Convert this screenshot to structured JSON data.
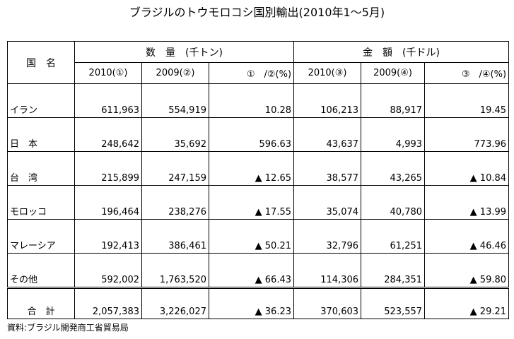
{
  "title": "ブラジルのトウモロコシ国別輸出(2010年1～5月)",
  "table": {
    "country_header": "国　名",
    "quantity_group": "数　量　(千トン)",
    "value_group": "金　額　(千ドル)",
    "subheaders": [
      "2010(①)",
      "2009(②)",
      "①　/②(%)",
      "2010(③)",
      "2009(④)",
      "③　/④(%)"
    ],
    "rows": [
      {
        "country": "イラン",
        "q2010": "611,963",
        "q2009": "554,919",
        "q_pct": "10.28",
        "v2010": "106,213",
        "v2009": "88,917",
        "v_pct": "19.45"
      },
      {
        "country": "日　本",
        "q2010": "248,642",
        "q2009": "35,692",
        "q_pct": "596.63",
        "v2010": "43,637",
        "v2009": "4,993",
        "v_pct": "773.96"
      },
      {
        "country": "台　湾",
        "q2010": "215,899",
        "q2009": "247,159",
        "q_pct": "▲ 12.65",
        "v2010": "38,577",
        "v2009": "43,265",
        "v_pct": "▲ 10.84"
      },
      {
        "country": "モロッコ",
        "q2010": "196,464",
        "q2009": "238,276",
        "q_pct": "▲ 17.55",
        "v2010": "35,074",
        "v2009": "40,780",
        "v_pct": "▲ 13.99"
      },
      {
        "country": "マレーシア",
        "q2010": "192,413",
        "q2009": "386,461",
        "q_pct": "▲ 50.21",
        "v2010": "32,796",
        "v2009": "61,251",
        "v_pct": "▲ 46.46"
      },
      {
        "country": "その他",
        "q2010": "592,002",
        "q2009": "1,763,520",
        "q_pct": "▲ 66.43",
        "v2010": "114,306",
        "v2009": "284,351",
        "v_pct": "▲ 59.80"
      }
    ],
    "total": {
      "country": "合　計",
      "q2010": "2,057,383",
      "q2009": "3,226,027",
      "q_pct": "▲ 36.23",
      "v2010": "370,603",
      "v2009": "523,557",
      "v_pct": "▲ 29.21"
    }
  },
  "source": "資料:ブラジル開発商工省貿易局"
}
